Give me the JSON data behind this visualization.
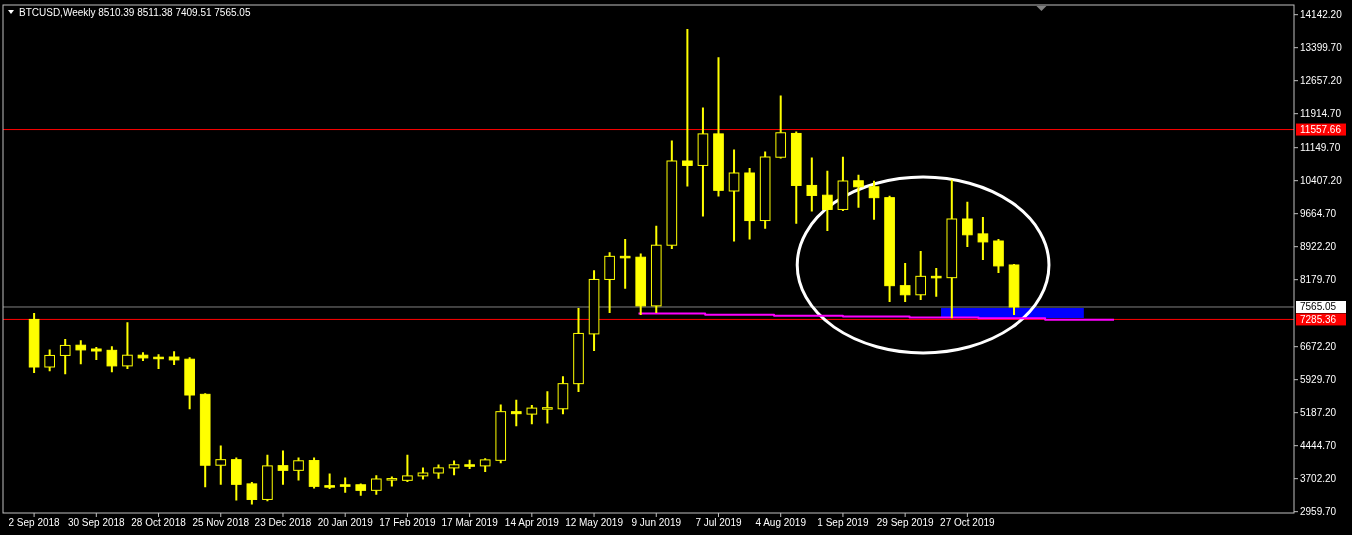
{
  "chart_data": {
    "type": "candlestick",
    "title": "BTCUSD,Weekly 8510.39 8511.38 7409.51 7565.05",
    "series": [
      {
        "type": "candlestick",
        "color": "#ffff00",
        "x": [
          "2018-09-02",
          "2018-09-09",
          "2018-09-16",
          "2018-09-23",
          "2018-09-30",
          "2018-10-07",
          "2018-10-14",
          "2018-10-21",
          "2018-10-28",
          "2018-11-04",
          "2018-11-11",
          "2018-11-18",
          "2018-11-25",
          "2018-12-02",
          "2018-12-09",
          "2018-12-16",
          "2018-12-23",
          "2018-12-30",
          "2019-01-06",
          "2019-01-13",
          "2019-01-20",
          "2019-01-27",
          "2019-02-03",
          "2019-02-10",
          "2019-02-17",
          "2019-02-24",
          "2019-03-03",
          "2019-03-10",
          "2019-03-17",
          "2019-03-24",
          "2019-03-31",
          "2019-04-07",
          "2019-04-14",
          "2019-04-21",
          "2019-04-28",
          "2019-05-05",
          "2019-05-12",
          "2019-05-19",
          "2019-05-26",
          "2019-06-02",
          "2019-06-09",
          "2019-06-16",
          "2019-06-23",
          "2019-06-30",
          "2019-07-07",
          "2019-07-14",
          "2019-07-21",
          "2019-07-28",
          "2019-08-04",
          "2019-08-11",
          "2019-08-18",
          "2019-08-25",
          "2019-09-01",
          "2019-09-08",
          "2019-09-15",
          "2019-09-22",
          "2019-09-29",
          "2019-10-06",
          "2019-10-13",
          "2019-10-20",
          "2019-10-27",
          "2019-11-03",
          "2019-11-10",
          "2019-11-17"
        ],
        "ohlc": [
          [
            7285,
            7410,
            6100,
            6215
          ],
          [
            6215,
            6585,
            6140,
            6475
          ],
          [
            6475,
            6820,
            6075,
            6700
          ],
          [
            6705,
            6795,
            6300,
            6600
          ],
          [
            6620,
            6645,
            6395,
            6575
          ],
          [
            6590,
            6660,
            6120,
            6240
          ],
          [
            6240,
            7200,
            6195,
            6480
          ],
          [
            6480,
            6525,
            6375,
            6420
          ],
          [
            6435,
            6480,
            6195,
            6425
          ],
          [
            6440,
            6545,
            6280,
            6375
          ],
          [
            6390,
            6410,
            5285,
            5585
          ],
          [
            5600,
            5600,
            3530,
            4005
          ],
          [
            4005,
            4425,
            3590,
            4130
          ],
          [
            4130,
            4155,
            3235,
            3575
          ],
          [
            3585,
            3605,
            3145,
            3235
          ],
          [
            3235,
            4220,
            3215,
            3990
          ],
          [
            3995,
            4315,
            3590,
            3890
          ],
          [
            3890,
            4155,
            3685,
            4105
          ],
          [
            4110,
            4155,
            3505,
            3530
          ],
          [
            3545,
            3795,
            3490,
            3530
          ],
          [
            3565,
            3705,
            3410,
            3530
          ],
          [
            3565,
            3570,
            3340,
            3440
          ],
          [
            3440,
            3755,
            3365,
            3695
          ],
          [
            3680,
            3730,
            3550,
            3705
          ],
          [
            3665,
            4220,
            3650,
            3765
          ],
          [
            3765,
            3930,
            3705,
            3830
          ],
          [
            3830,
            4000,
            3725,
            3945
          ],
          [
            3945,
            4090,
            3800,
            4015
          ],
          [
            4015,
            4105,
            3945,
            3990
          ],
          [
            3990,
            4140,
            3875,
            4125
          ],
          [
            4115,
            5350,
            4070,
            5210
          ],
          [
            5210,
            5455,
            4905,
            5165
          ],
          [
            5155,
            5335,
            4950,
            5290
          ],
          [
            5280,
            5645,
            4965,
            5300
          ],
          [
            5275,
            5985,
            5175,
            5840
          ],
          [
            5840,
            7520,
            5675,
            6970
          ],
          [
            6960,
            8370,
            6600,
            8185
          ],
          [
            8185,
            8775,
            7455,
            8705
          ],
          [
            8705,
            9075,
            8000,
            8685
          ],
          [
            8685,
            8745,
            7410,
            7590
          ],
          [
            7590,
            9370,
            7450,
            8955
          ],
          [
            8955,
            11290,
            8895,
            10850
          ],
          [
            10850,
            13800,
            10300,
            10750
          ],
          [
            10750,
            12030,
            9625,
            11460
          ],
          [
            11460,
            13160,
            10075,
            10190
          ],
          [
            10175,
            11085,
            9060,
            10580
          ],
          [
            10580,
            10670,
            9105,
            9510
          ],
          [
            9510,
            11040,
            9350,
            10940
          ],
          [
            10935,
            12300,
            10930,
            11485
          ],
          [
            11470,
            11490,
            9460,
            10300
          ],
          [
            10300,
            10905,
            9735,
            10075
          ],
          [
            10080,
            10610,
            9300,
            9760
          ],
          [
            9760,
            10925,
            9745,
            10400
          ],
          [
            10405,
            10520,
            9820,
            10270
          ],
          [
            10270,
            10385,
            9550,
            10025
          ],
          [
            10025,
            10045,
            7700,
            8045
          ],
          [
            8045,
            8535,
            7700,
            7840
          ],
          [
            7840,
            8805,
            7745,
            8255
          ],
          [
            8255,
            8420,
            7820,
            8240
          ],
          [
            8225,
            10405,
            7335,
            9545
          ],
          [
            9545,
            9910,
            8940,
            9190
          ],
          [
            9210,
            9570,
            8645,
            9030
          ],
          [
            9050,
            9075,
            8350,
            8490
          ],
          [
            8510.39,
            8511.38,
            7409.51,
            7565.05
          ]
        ]
      },
      {
        "type": "step",
        "color": "#ff00ff",
        "x": [
          "2019-06-01",
          "2019-07-01",
          "2019-08-01",
          "2019-09-01",
          "2019-10-01",
          "2019-11-01",
          "2019-12-01",
          "2020-01-01"
        ],
        "values": [
          7420,
          7390,
          7370,
          7350,
          7330,
          7310,
          7280,
          7280
        ]
      }
    ],
    "xlim": [
      "2018-08-19",
      "2020-03-22"
    ],
    "xticks": [
      {
        "value": "2018-09-02",
        "label": "2 Sep 2018"
      },
      {
        "value": "2018-09-30",
        "label": "30 Sep 2018"
      },
      {
        "value": "2018-10-28",
        "label": "28 Oct 2018"
      },
      {
        "value": "2018-11-25",
        "label": "25 Nov 2018"
      },
      {
        "value": "2018-12-23",
        "label": "23 Dec 2018"
      },
      {
        "value": "2019-01-20",
        "label": "20 Jan 2019"
      },
      {
        "value": "2019-02-17",
        "label": "17 Feb 2019"
      },
      {
        "value": "2019-03-17",
        "label": "17 Mar 2019"
      },
      {
        "value": "2019-04-14",
        "label": "14 Apr 2019"
      },
      {
        "value": "2019-05-12",
        "label": "12 May 2019"
      },
      {
        "value": "2019-06-09",
        "label": "9 Jun 2019"
      },
      {
        "value": "2019-07-07",
        "label": "7 Jul 2019"
      },
      {
        "value": "2019-08-04",
        "label": "4 Aug 2019"
      },
      {
        "value": "2019-09-01",
        "label": "1 Sep 2019"
      },
      {
        "value": "2019-09-29",
        "label": "29 Sep 2019"
      },
      {
        "value": "2019-10-27",
        "label": "27 Oct 2019"
      }
    ],
    "ylim": [
      2930,
      14360
    ],
    "yticks": [
      {
        "value": 14142.2,
        "label": "14142.20"
      },
      {
        "value": 13399.7,
        "label": "13399.70"
      },
      {
        "value": 12657.2,
        "label": "12657.20"
      },
      {
        "value": 11914.7,
        "label": "11914.70"
      },
      {
        "value": 11149.7,
        "label": "11149.70"
      },
      {
        "value": 10407.2,
        "label": "10407.20"
      },
      {
        "value": 9664.7,
        "label": "9664.70"
      },
      {
        "value": 8922.2,
        "label": "8922.20"
      },
      {
        "value": 8179.7,
        "label": "8179.70"
      },
      {
        "value": 6672.2,
        "label": "6672.20"
      },
      {
        "value": 5929.7,
        "label": "5929.70"
      },
      {
        "value": 5187.2,
        "label": "5187.20"
      },
      {
        "value": 4444.7,
        "label": "4444.70"
      },
      {
        "value": 3702.2,
        "label": "3702.20"
      },
      {
        "value": 2959.7,
        "label": "2959.70"
      }
    ],
    "ref_lines": [
      {
        "axis": "y",
        "value": 11557.66,
        "label": "11557.66",
        "color": "#ff0000"
      },
      {
        "axis": "y",
        "value": 7565.05,
        "label": "7565.05",
        "color": "#808080"
      },
      {
        "axis": "y",
        "value": 7285.36,
        "label": "7285.36",
        "color": "#ff0000"
      }
    ]
  }
}
